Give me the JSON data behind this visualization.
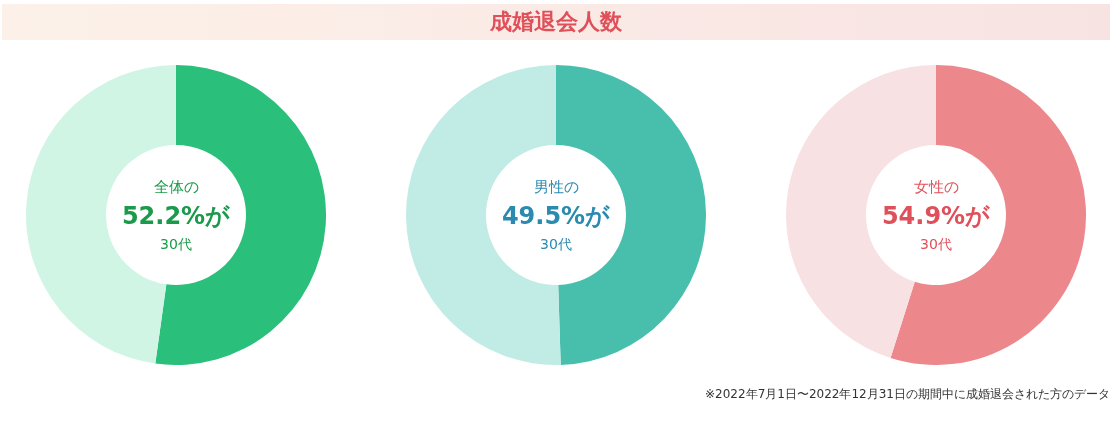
{
  "chart_data": [
    {
      "type": "donut",
      "categories": [
        "30代",
        null
      ],
      "values": [
        52.2,
        47.8
      ],
      "colors": [
        "#2abf7b",
        "#d0f5e4"
      ],
      "value_labels": [
        "52.2%が",
        null
      ],
      "annotations": [
        "全体の"
      ]
    },
    {
      "type": "donut",
      "title": "成婚退会人数",
      "categories": [
        "30代",
        null
      ],
      "values": [
        49.5,
        50.5
      ],
      "colors": [
        "#48bfad",
        "#c0ece5"
      ],
      "value_labels": [
        "49.5%が",
        null
      ],
      "annotations": [
        "男性の"
      ]
    },
    {
      "type": "donut",
      "categories": [
        "30代",
        null
      ],
      "values": [
        54.9,
        45.1
      ],
      "colors": [
        "#ec878c",
        "#f8e1e3"
      ],
      "value_labels": [
        "54.9%が",
        null
      ],
      "annotations": [
        "女性の",
        "※2022年7月1日〜2022年12月31日の期間中に成婚退会された方のデータ"
      ]
    }
  ]
}
